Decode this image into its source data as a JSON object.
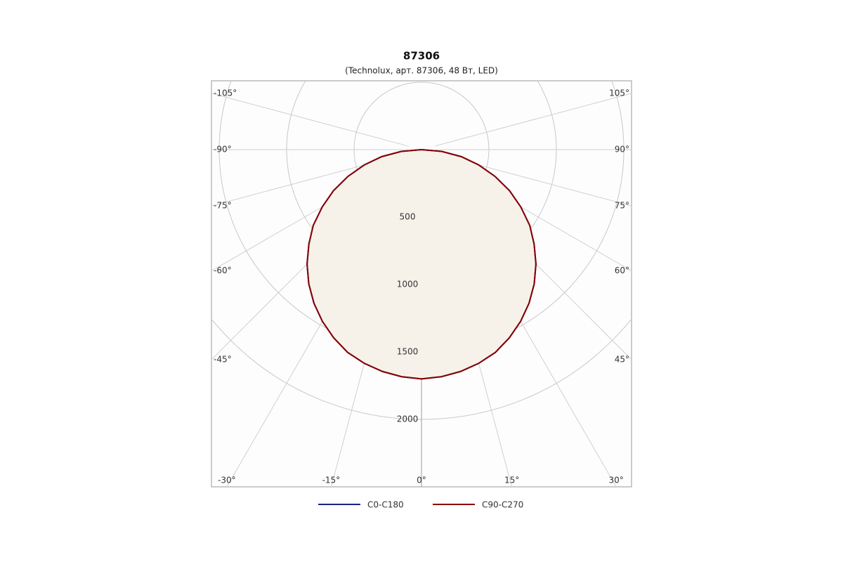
{
  "chart_data": {
    "type": "polar",
    "title": "87306",
    "subtitle": "(Technolux, арт. 87306, 48 Вт, LED)",
    "x": [
      -90,
      -85,
      -80,
      -75,
      -70,
      -65,
      -60,
      -55,
      -50,
      -45,
      -40,
      -35,
      -30,
      -25,
      -20,
      -15,
      -10,
      -5,
      0,
      5,
      10,
      15,
      20,
      25,
      30,
      35,
      40,
      45,
      50,
      55,
      60,
      65,
      70,
      75,
      80,
      85,
      90
    ],
    "series": [
      {
        "name": "C0-C180",
        "color": "#1a237e",
        "values": [
          0,
          150,
          300,
          440,
          580,
          720,
          850,
          980,
          1090,
          1200,
          1300,
          1390,
          1470,
          1540,
          1600,
          1640,
          1670,
          1690,
          1700,
          1690,
          1670,
          1640,
          1600,
          1540,
          1470,
          1390,
          1300,
          1200,
          1090,
          980,
          850,
          720,
          580,
          440,
          300,
          150,
          0
        ]
      },
      {
        "name": "C90-C270",
        "color": "#8b0000",
        "values": [
          0,
          150,
          300,
          440,
          580,
          720,
          850,
          980,
          1090,
          1200,
          1300,
          1390,
          1470,
          1540,
          1600,
          1640,
          1670,
          1690,
          1700,
          1690,
          1670,
          1640,
          1600,
          1540,
          1470,
          1390,
          1300,
          1200,
          1090,
          980,
          850,
          720,
          580,
          440,
          300,
          150,
          0
        ]
      }
    ],
    "fill_color": "#f6f2ea",
    "rticks": [
      500,
      1000,
      1500,
      2000
    ],
    "angle_ticks": [
      {
        "value": -105,
        "label": "-105°"
      },
      {
        "value": -90,
        "label": "-90°"
      },
      {
        "value": -75,
        "label": "-75°"
      },
      {
        "value": -60,
        "label": "-60°"
      },
      {
        "value": -45,
        "label": "-45°"
      },
      {
        "value": -30,
        "label": "-30°"
      },
      {
        "value": -15,
        "label": "-15°"
      },
      {
        "value": 0,
        "label": "0°"
      },
      {
        "value": 15,
        "label": "15°"
      },
      {
        "value": 30,
        "label": "30°"
      },
      {
        "value": 45,
        "label": "45°"
      },
      {
        "value": 60,
        "label": "60°"
      },
      {
        "value": 75,
        "label": "75°"
      },
      {
        "value": 90,
        "label": "90°"
      },
      {
        "value": 105,
        "label": "105°"
      }
    ]
  }
}
